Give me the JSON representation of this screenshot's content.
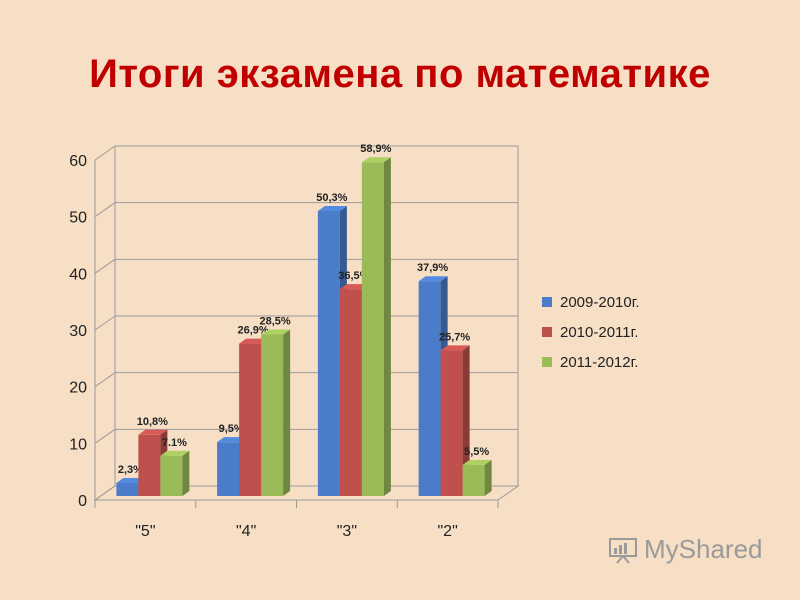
{
  "title": "Итоги экзамена по математике",
  "watermark": "MyShared",
  "colors": {
    "title": "#c00000",
    "background": "#f7dfc6",
    "series": [
      "#4a7cc9",
      "#c0504d",
      "#9bbb59"
    ]
  },
  "chart_data": {
    "type": "bar",
    "variant": "3d-clustered-column",
    "title": "",
    "xlabel": "",
    "ylabel": "",
    "ylim": [
      0,
      60
    ],
    "yticks": [
      0,
      10,
      20,
      30,
      40,
      50,
      60
    ],
    "grid": true,
    "legend_position": "right",
    "categories": [
      "\"5\"",
      "\"4\"",
      "\"3\"",
      "\"2\""
    ],
    "series": [
      {
        "name": "2009-2010г.",
        "values": [
          2.3,
          9.5,
          50.3,
          37.9
        ],
        "labels": [
          "2,3%",
          "9,5%",
          "50,3%",
          "37,9%"
        ]
      },
      {
        "name": "2010-2011г.",
        "values": [
          10.8,
          26.9,
          36.5,
          25.7
        ],
        "labels": [
          "10,8%",
          "26,9%",
          "36,5%",
          "25,7%"
        ]
      },
      {
        "name": "2011-2012г.",
        "values": [
          7.1,
          28.5,
          58.9,
          5.5
        ],
        "labels": [
          "7.1%",
          "28,5%",
          "58,9%",
          "5,5%"
        ]
      }
    ]
  }
}
